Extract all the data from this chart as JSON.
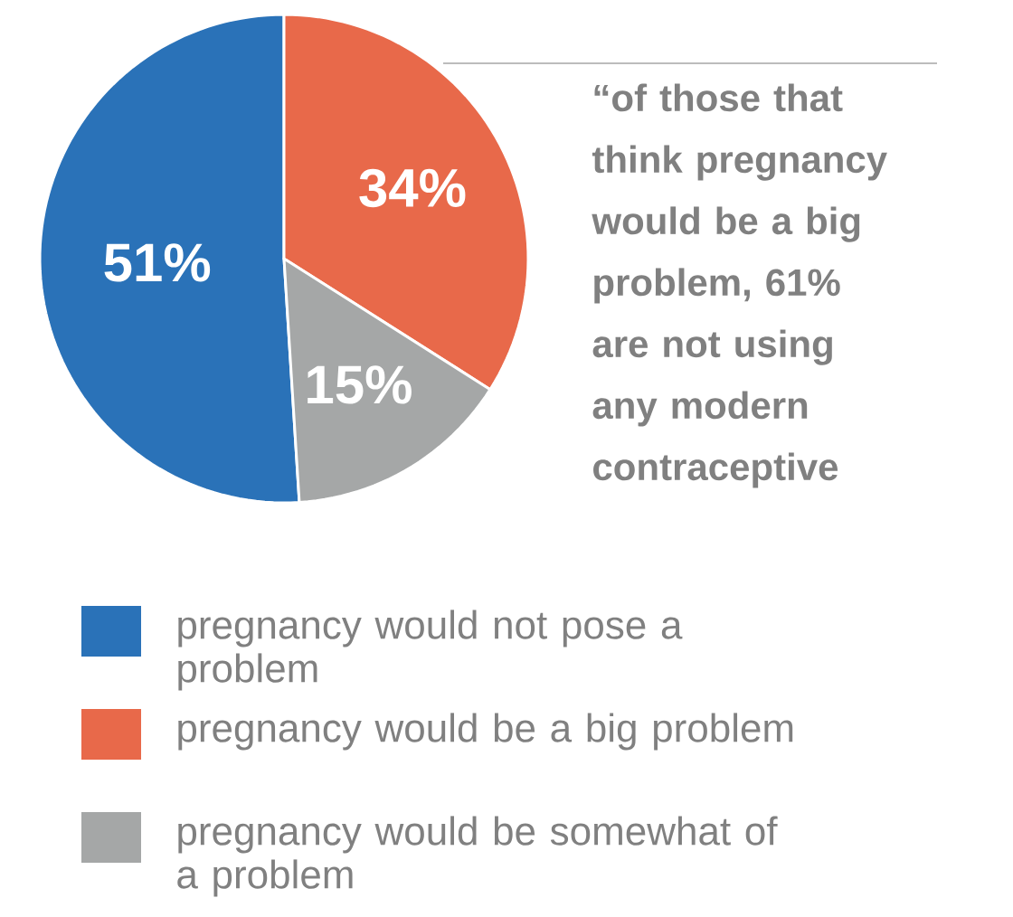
{
  "chart_data": {
    "type": "pie",
    "categories": [
      "pregnancy would not pose a problem",
      "pregnancy would be a big problem",
      "pregnancy would be somewhat of a problem"
    ],
    "values": [
      51,
      34,
      15
    ],
    "colors": [
      "#2a72b8",
      "#e8694a",
      "#a5a7a7"
    ],
    "value_labels": [
      "51%",
      "34%",
      "15%"
    ],
    "legend": "bottom",
    "annotations": [
      "“of those that think pregnancy would be a big problem, 61% are not using any modern contraceptive"
    ]
  }
}
